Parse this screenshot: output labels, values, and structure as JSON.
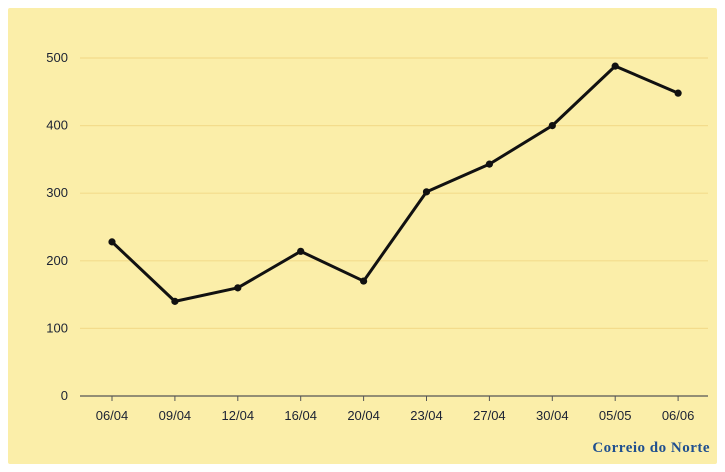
{
  "chart_data": {
    "type": "line",
    "categories": [
      "06/04",
      "09/04",
      "12/04",
      "16/04",
      "20/04",
      "23/04",
      "27/04",
      "30/04",
      "05/05",
      "06/06"
    ],
    "values": [
      228,
      140,
      160,
      214,
      170,
      302,
      343,
      400,
      488,
      448
    ],
    "ylim": [
      0,
      500
    ],
    "yticks": [
      0,
      100,
      200,
      300,
      400,
      500
    ],
    "grid": true,
    "title": "",
    "xlabel": "",
    "ylabel": ""
  },
  "source": {
    "logo_text": "Correio do Norte"
  },
  "colors": {
    "background": "#fbeea9",
    "line": "#111111",
    "grid": "#f3dc8c",
    "logo": "#1f4f8f"
  }
}
